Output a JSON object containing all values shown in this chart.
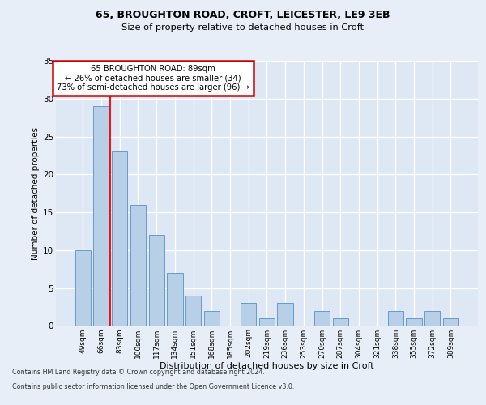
{
  "title1": "65, BROUGHTON ROAD, CROFT, LEICESTER, LE9 3EB",
  "title2": "Size of property relative to detached houses in Croft",
  "xlabel": "Distribution of detached houses by size in Croft",
  "ylabel": "Number of detached properties",
  "categories": [
    "49sqm",
    "66sqm",
    "83sqm",
    "100sqm",
    "117sqm",
    "134sqm",
    "151sqm",
    "168sqm",
    "185sqm",
    "202sqm",
    "219sqm",
    "236sqm",
    "253sqm",
    "270sqm",
    "287sqm",
    "304sqm",
    "321sqm",
    "338sqm",
    "355sqm",
    "372sqm",
    "389sqm"
  ],
  "values": [
    10,
    29,
    23,
    16,
    12,
    7,
    4,
    2,
    0,
    3,
    1,
    3,
    0,
    2,
    1,
    0,
    0,
    2,
    1,
    2,
    1
  ],
  "bar_color": "#b8cfe8",
  "bar_edge_color": "#6699cc",
  "red_line_x": 1.5,
  "annotation_line1": "65 BROUGHTON ROAD: 89sqm",
  "annotation_line2": "← 26% of detached houses are smaller (34)",
  "annotation_line3": "73% of semi-detached houses are larger (96) →",
  "annotation_box_facecolor": "#ffffff",
  "annotation_box_edgecolor": "#cc0000",
  "ylim": [
    0,
    35
  ],
  "yticks": [
    0,
    5,
    10,
    15,
    20,
    25,
    30,
    35
  ],
  "fig_bg_color": "#e8eef8",
  "ax_bg_color": "#dde8f4",
  "grid_color": "#ffffff",
  "footer1": "Contains HM Land Registry data © Crown copyright and database right 2024.",
  "footer2": "Contains public sector information licensed under the Open Government Licence v3.0."
}
